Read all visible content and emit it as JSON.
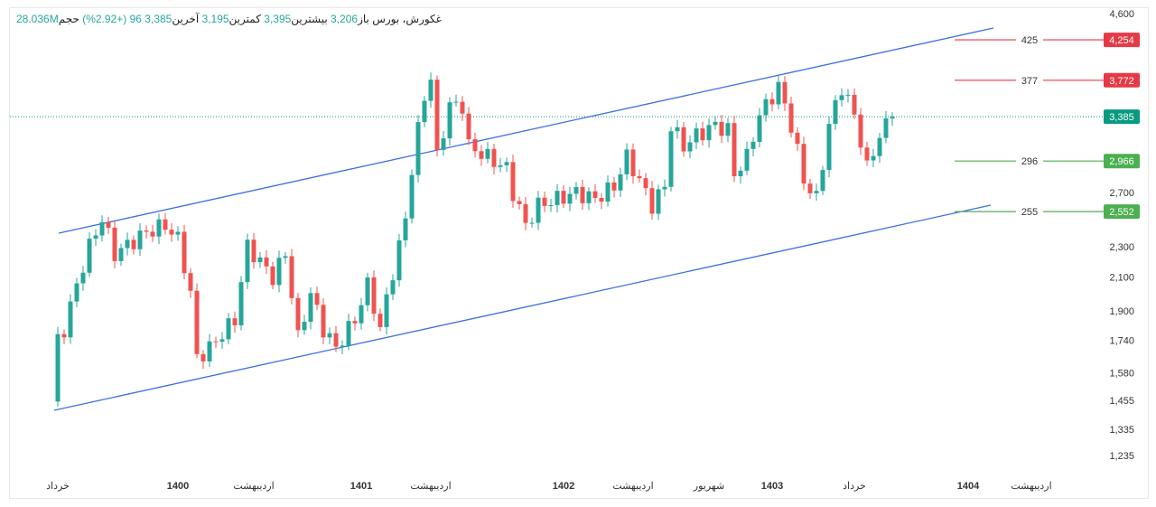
{
  "header": {
    "symbol": "غکورش، بورس",
    "open_label": "باز",
    "open": "3,206",
    "high_label": "بیشترین",
    "high": "3,395",
    "low_label": "کمترین",
    "low": "3,195",
    "close_label": "آخرین",
    "close": "3,385",
    "change": "96 (+2.92%)",
    "volume_label": "حجم",
    "volume": "28.036M"
  },
  "colors": {
    "up": "#26a69a",
    "down": "#ef5350",
    "channel": "#3b6fe0",
    "resist": "#e53945",
    "support": "#4caf50",
    "last": "#089981"
  },
  "chart_data": {
    "type": "candlestick",
    "scale": "log",
    "yticks": [
      "4,600",
      "2,700",
      "2,300",
      "2,100",
      "1,900",
      "1,740",
      "1,580",
      "1,455",
      "1,335",
      "1,235"
    ],
    "ytick_values": [
      4600,
      2700,
      2300,
      2100,
      1900,
      1740,
      1580,
      1455,
      1335,
      1235
    ],
    "xticks": [
      "خرداد",
      "1400",
      "اردیبهشت",
      "1401",
      "اردیبهشت",
      "1402",
      "اردیبهشت",
      "شهریور",
      "1403",
      "خرداد",
      "1404",
      "اردیبهشت"
    ],
    "xtick_bars": [
      1,
      20,
      32,
      49,
      60,
      81,
      92,
      104,
      114,
      127,
      145,
      155
    ],
    "close_keypoints": [
      [
        0,
        1450
      ],
      [
        1,
        1740
      ],
      [
        2,
        1800
      ],
      [
        6,
        2300
      ],
      [
        8,
        2500
      ],
      [
        10,
        2250
      ],
      [
        15,
        2400
      ],
      [
        18,
        2450
      ],
      [
        20,
        2350
      ],
      [
        22,
        2000
      ],
      [
        23,
        1650
      ],
      [
        25,
        1700
      ],
      [
        29,
        1850
      ],
      [
        31,
        2300
      ],
      [
        33,
        2200
      ],
      [
        35,
        2100
      ],
      [
        37,
        2250
      ],
      [
        38,
        2000
      ],
      [
        39,
        1750
      ],
      [
        41,
        2000
      ],
      [
        43,
        1800
      ],
      [
        45,
        1700
      ],
      [
        48,
        1850
      ],
      [
        50,
        2050
      ],
      [
        52,
        1800
      ],
      [
        55,
        2300
      ],
      [
        56,
        2500
      ],
      [
        57,
        2900
      ],
      [
        59,
        3600
      ],
      [
        60,
        3800
      ],
      [
        61,
        3000
      ],
      [
        63,
        3500
      ],
      [
        65,
        3500
      ],
      [
        66,
        3100
      ],
      [
        69,
        3000
      ],
      [
        72,
        2900
      ],
      [
        73,
        2700
      ],
      [
        75,
        2450
      ],
      [
        77,
        2600
      ],
      [
        80,
        2650
      ],
      [
        83,
        2700
      ],
      [
        86,
        2650
      ],
      [
        89,
        2750
      ],
      [
        91,
        3000
      ],
      [
        93,
        2800
      ],
      [
        95,
        2600
      ],
      [
        97,
        2750
      ],
      [
        98,
        3300
      ],
      [
        100,
        3100
      ],
      [
        102,
        3200
      ],
      [
        105,
        3300
      ],
      [
        107,
        3250
      ],
      [
        108,
        2850
      ],
      [
        110,
        3000
      ],
      [
        112,
        3400
      ],
      [
        114,
        3600
      ],
      [
        115,
        3700
      ],
      [
        117,
        3300
      ],
      [
        119,
        2800
      ],
      [
        121,
        2650
      ],
      [
        122,
        2950
      ],
      [
        123,
        3300
      ],
      [
        125,
        3700
      ],
      [
        127,
        3400
      ],
      [
        129,
        2900
      ],
      [
        131,
        3200
      ],
      [
        133,
        3385
      ]
    ],
    "levels": [
      {
        "label": "425",
        "value": "4,254",
        "price": 4254,
        "type": "resistance"
      },
      {
        "label": "377",
        "value": "3,772",
        "price": 3772,
        "type": "resistance"
      },
      {
        "label": "296",
        "value": "2,966",
        "price": 2966,
        "type": "support"
      },
      {
        "label": "255",
        "value": "2,552",
        "price": 2552,
        "type": "support"
      }
    ],
    "last_price": {
      "value": "3,385",
      "price": 3385
    }
  }
}
